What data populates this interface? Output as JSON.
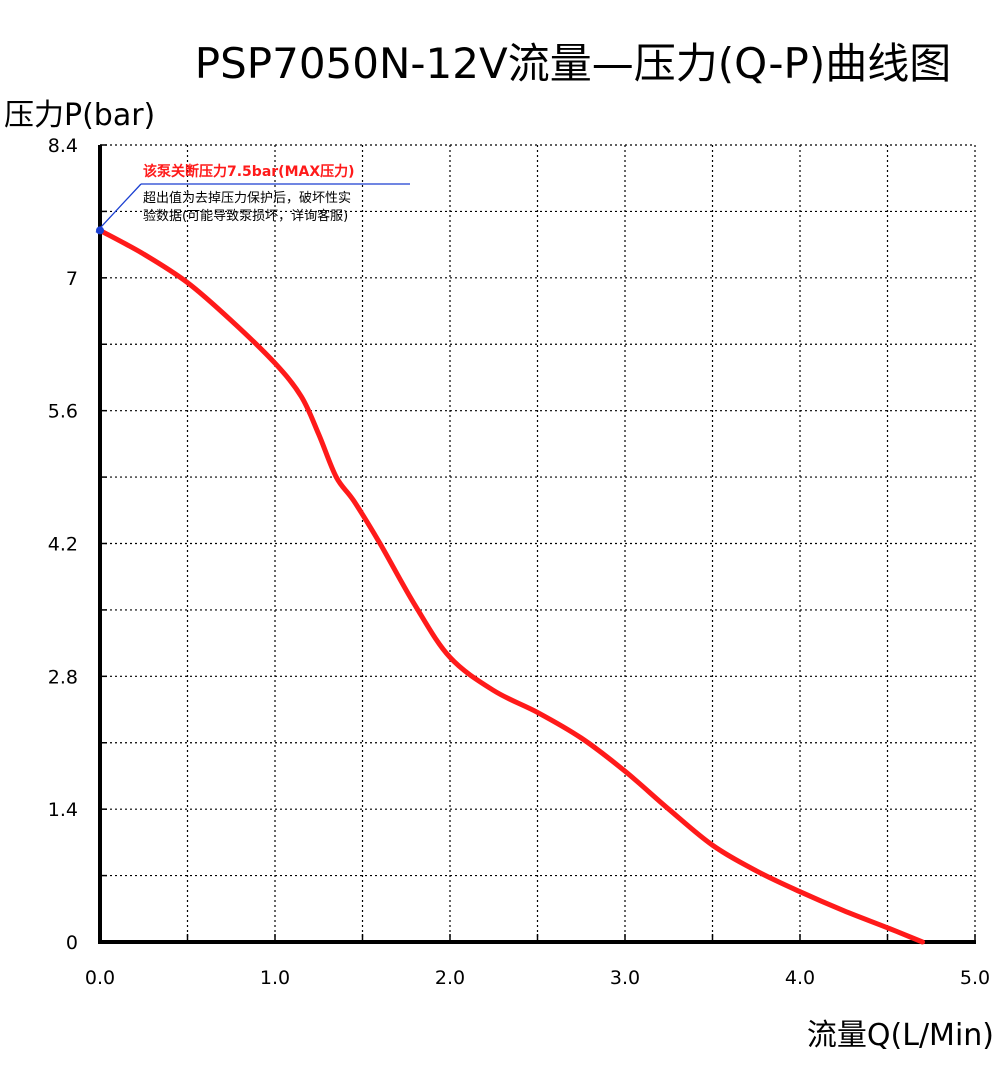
{
  "colors": {
    "curve": "#ff1a1a",
    "annotation_title": "#ff1a1a",
    "callout_line": "#1a3fd1",
    "grid": "#000000",
    "axis": "#000000"
  },
  "chart_data": {
    "type": "line",
    "title": "PSP7050N-12V流量—压力(Q-P)曲线图",
    "xlabel": "流量Q(L/Min)",
    "ylabel": "压力P(bar)",
    "xlim": [
      0,
      5.0
    ],
    "ylim": [
      0,
      8.4
    ],
    "x_ticks": [
      "0.0",
      "1.0",
      "2.0",
      "3.0",
      "4.0",
      "5.0"
    ],
    "y_ticks": [
      "0",
      "1.4",
      "2.8",
      "4.2",
      "5.6",
      "7",
      "8.4"
    ],
    "x_minor_step": 0.5,
    "y_minor_step": 0.7,
    "grid": true,
    "grid_style": "dotted",
    "series": [
      {
        "color": "#ff1a1a",
        "x": [
          0,
          0.25,
          0.5,
          0.75,
          1.0,
          1.15,
          1.25,
          1.35,
          1.45,
          1.6,
          1.8,
          2.0,
          2.25,
          2.5,
          2.75,
          3.0,
          3.25,
          3.5,
          3.75,
          4.0,
          4.25,
          4.5,
          4.7
        ],
        "y": [
          7.5,
          7.25,
          6.95,
          6.55,
          6.1,
          5.75,
          5.35,
          4.9,
          4.65,
          4.2,
          3.55,
          3.0,
          2.65,
          2.42,
          2.15,
          1.8,
          1.4,
          1.02,
          0.75,
          0.53,
          0.33,
          0.15,
          0.0
        ]
      }
    ],
    "annotations": [
      {
        "x": 0,
        "y": 7.5,
        "title": "该泵关断压力7.5bar(MAX压力)",
        "lines": [
          "超出值为去掉压力保护后，破坏性实",
          "验数据(可能导致泵损坏，详询客服)"
        ]
      }
    ]
  }
}
